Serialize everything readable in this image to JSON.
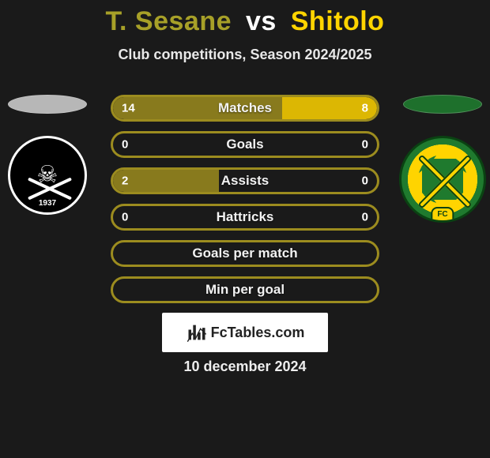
{
  "title": {
    "player1": "T. Sesane",
    "vs": "vs",
    "player2": "Shitolo"
  },
  "subtitle": "Club competitions, Season 2024/2025",
  "colors": {
    "player1": "#9c8c1f",
    "player2": "#ffd400",
    "shadow_left": "#c8c8c8",
    "shadow_right": "#1f7a2e",
    "title_p1": "#a7a028",
    "title_p2": "#ffd400",
    "title_vs": "#ffffff"
  },
  "badges": {
    "left": {
      "year": "1937"
    },
    "right": {
      "fc": "FC"
    }
  },
  "stats": [
    {
      "label": "Matches",
      "left_val": "14",
      "right_val": "8",
      "left_pct": 64,
      "right_pct": 36
    },
    {
      "label": "Goals",
      "left_val": "0",
      "right_val": "0",
      "left_pct": 0,
      "right_pct": 0
    },
    {
      "label": "Assists",
      "left_val": "2",
      "right_val": "0",
      "left_pct": 40,
      "right_pct": 0
    },
    {
      "label": "Hattricks",
      "left_val": "0",
      "right_val": "0",
      "left_pct": 0,
      "right_pct": 0
    },
    {
      "label": "Goals per match",
      "left_val": "",
      "right_val": "",
      "left_pct": 0,
      "right_pct": 0
    },
    {
      "label": "Min per goal",
      "left_val": "",
      "right_val": "",
      "left_pct": 0,
      "right_pct": 0
    }
  ],
  "footer": {
    "brand": "FcTables.com",
    "date": "10 december 2024"
  }
}
